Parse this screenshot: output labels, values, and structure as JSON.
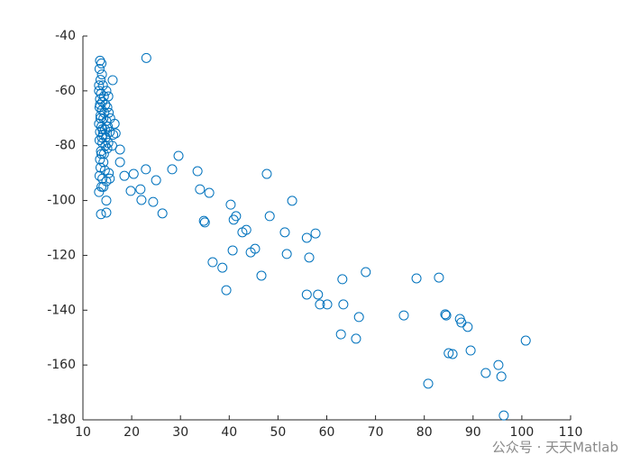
{
  "chart_data": {
    "type": "scatter",
    "marker_color": "#0072BD",
    "xlim": [
      10,
      110
    ],
    "xticks": [
      10,
      20,
      30,
      40,
      50,
      60,
      70,
      80,
      90,
      100,
      110
    ],
    "ylim": [
      -180,
      -40
    ],
    "yticks": [
      -180,
      -160,
      -140,
      -120,
      -100,
      -80,
      -60,
      -40
    ],
    "x": [
      23,
      16.1,
      28.3,
      29.6,
      33.5,
      20.4,
      22.9,
      17.6,
      17.6,
      16.7,
      18.5,
      19.8,
      21.8,
      25,
      24.4,
      22,
      26.3,
      14.8,
      13.7,
      14.8,
      13.3,
      34,
      35.9,
      34.8,
      35,
      40.3,
      41.4,
      40.9,
      43.5,
      42.7,
      48.3,
      47.7,
      52.9,
      51.4,
      45.3,
      44.4,
      40.7,
      51.8,
      56.4,
      57.7,
      55.9,
      36.6,
      38.6,
      46.6,
      39.4,
      55.9,
      58.2,
      58.6,
      60.1,
      63.2,
      63.4,
      68,
      66.6,
      62.9,
      66,
      75.8,
      78.4,
      83,
      84.3,
      84.5,
      87.3,
      87.6,
      88.9,
      85,
      85.8,
      89.5,
      80.8,
      92.6,
      95.2,
      95.8,
      100.8,
      96.3,
      13.5,
      13.8,
      13.4,
      13.9,
      13.6,
      14.1,
      13.3,
      13.7,
      14.3,
      13.5,
      14.0,
      14.6,
      13.4,
      13.9,
      14.4,
      15.0,
      13.6,
      14.2,
      14.8,
      15.3,
      13.3,
      13.8,
      14.5,
      15.1,
      13.5,
      14.1,
      14.7,
      15.5,
      16.2,
      13.4,
      14.0,
      14.6,
      15.2,
      16.0,
      13.7,
      14.3,
      15.0,
      13.5,
      14.2,
      13.6,
      14.5,
      15.3,
      13.4,
      14.0,
      14.8,
      13.8,
      15.5,
      13.6,
      13.5,
      14.8,
      15.2,
      14.0,
      13.9,
      15.6,
      16.5,
      13.3,
      13.8,
      14.2
    ],
    "y": [
      -48,
      -56.1,
      -88.6,
      -83.7,
      -89.3,
      -90.3,
      -88.6,
      -86,
      -81.4,
      -75.5,
      -91,
      -96.5,
      -95.9,
      -92.6,
      -100.5,
      -99.8,
      -104.7,
      -104.4,
      -105,
      -100,
      -96.9,
      -95.9,
      -97.2,
      -107.4,
      -108,
      -101.5,
      -105.7,
      -107,
      -110.7,
      -111.6,
      -105.7,
      -90.3,
      -100.1,
      -111.6,
      -117.6,
      -118.9,
      -118.2,
      -119.5,
      -120.8,
      -112,
      -113.6,
      -122.5,
      -124.5,
      -127.4,
      -132.7,
      -134.3,
      -134.3,
      -137.9,
      -137.9,
      -128.7,
      -137.9,
      -126.1,
      -142.5,
      -148.8,
      -150.4,
      -141.9,
      -128.4,
      -128.1,
      -141.5,
      -141.9,
      -143.2,
      -144.5,
      -146.1,
      -155.7,
      -156,
      -154.7,
      -166.8,
      -162.9,
      -160,
      -164.2,
      -151.1,
      -178.4,
      -49,
      -50,
      -52,
      -54,
      -56,
      -58,
      -60,
      -61,
      -62,
      -63,
      -64,
      -65,
      -66,
      -67,
      -68,
      -66,
      -69,
      -70,
      -71,
      -68,
      -72,
      -73,
      -74,
      -73,
      -75,
      -76,
      -77,
      -75,
      -76,
      -78,
      -79,
      -80,
      -79,
      -80,
      -82,
      -83,
      -81,
      -85,
      -86,
      -88,
      -89,
      -90,
      -91,
      -92,
      -93,
      -95,
      -92,
      -70,
      -65,
      -60,
      -62,
      -74,
      -77,
      -70,
      -72,
      -58,
      -83,
      -95
    ]
  },
  "watermark": "公众号 · 天天Matlab"
}
